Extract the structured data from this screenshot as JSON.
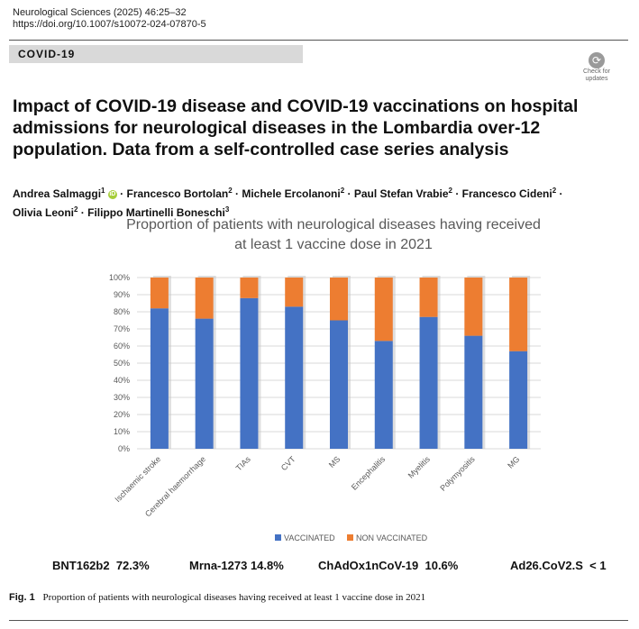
{
  "journal": {
    "citation": "Neurological Sciences (2025) 46:25–32",
    "doi": "https://doi.org/10.1007/s10072-024-07870-5"
  },
  "section": "COVID-19",
  "check_updates": {
    "line1": "Check for",
    "line2": "updates"
  },
  "title": "Impact of COVID-19 disease and COVID-19 vaccinations on hospital admissions for neurological diseases in the Lombardia over-12 population. Data from a self-controlled case series analysis",
  "authors": [
    {
      "name": "Andrea Salmaggi",
      "aff": "1"
    },
    {
      "name": "Francesco Bortolan",
      "aff": "2"
    },
    {
      "name": "Michele Ercolanoni",
      "aff": "2"
    },
    {
      "name": "Paul Stefan Vrabie",
      "aff": "2"
    },
    {
      "name": "Francesco Cideni",
      "aff": "2"
    },
    {
      "name": "Olivia Leoni",
      "aff": "2"
    },
    {
      "name": "Filippo Martinelli Boneschi",
      "aff": "3"
    }
  ],
  "chart_data": {
    "type": "bar",
    "stacked": true,
    "title_line1": "Proportion of patients with neurological diseases having received",
    "title_line2": "at least 1 vaccine dose in 2021",
    "categories": [
      "Ischaemic stroke",
      "Cerebral haemorrhage",
      "TIAs",
      "CVT",
      "MS",
      "Encephalitis",
      "Myelitis",
      "Polymyositis",
      "MG"
    ],
    "series": [
      {
        "name": "VACCINATED",
        "values": [
          82,
          76,
          88,
          83,
          75,
          63,
          77,
          66,
          57
        ]
      },
      {
        "name": "NON VACCINATED",
        "values": [
          18,
          24,
          12,
          17,
          25,
          37,
          23,
          34,
          43
        ]
      }
    ],
    "yticks": [
      "0%",
      "10%",
      "20%",
      "30%",
      "40%",
      "50%",
      "60%",
      "70%",
      "80%",
      "90%",
      "100%"
    ],
    "ylim": [
      0,
      100
    ],
    "grid": true,
    "legend_position": "bottom",
    "colors": {
      "VACCINATED": "#4472c4",
      "NON VACCINATED": "#ed7d31"
    }
  },
  "vaccines": [
    {
      "name": "BNT162b2",
      "value": "72.3%"
    },
    {
      "name": "Mrna-1273",
      "value": "14.8%"
    },
    {
      "name": "ChAdOx1nCoV-19",
      "value": "10.6%"
    },
    {
      "name": "Ad26.CoV2.S",
      "value": "< 1"
    }
  ],
  "caption": {
    "label": "Fig. 1",
    "text": "Proportion of patients with neurological diseases having received at least 1 vaccine dose in 2021"
  }
}
